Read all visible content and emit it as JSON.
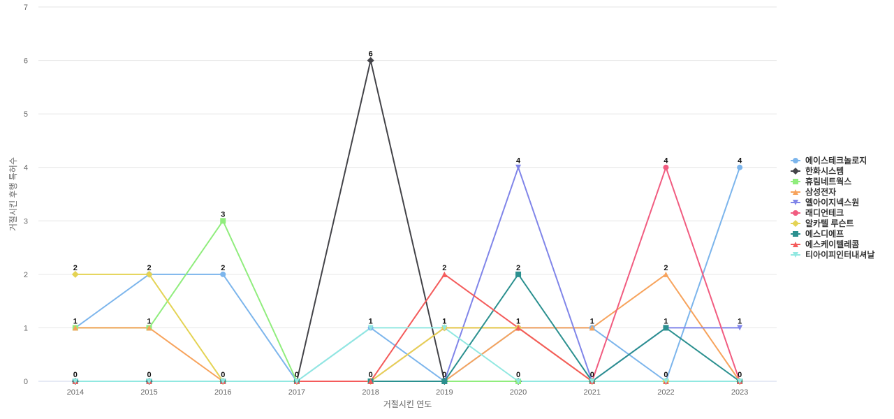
{
  "chart_data": {
    "type": "line",
    "xlabel": "거절시킨 연도",
    "ylabel": "거절시킨 후행 특허수",
    "x": [
      "2014",
      "2015",
      "2016",
      "2017",
      "2018",
      "2019",
      "2020",
      "2021",
      "2022",
      "2023"
    ],
    "ylim": [
      0,
      7
    ],
    "yticks": [
      0,
      1,
      2,
      3,
      4,
      5,
      6,
      7
    ],
    "grid": true,
    "legend_position": "right",
    "series": [
      {
        "name": "에이스테크놀로지",
        "color": "#7cb5ec",
        "marker": "circle",
        "values": [
          1,
          2,
          2,
          0,
          1,
          0,
          1,
          1,
          0,
          4
        ]
      },
      {
        "name": "한화시스템",
        "color": "#434348",
        "marker": "diamond",
        "values": [
          0,
          0,
          0,
          0,
          6,
          0,
          0,
          0,
          0,
          0
        ]
      },
      {
        "name": "휴림네트웍스",
        "color": "#90ed7d",
        "marker": "square",
        "values": [
          1,
          1,
          3,
          0,
          0,
          0,
          0,
          0,
          0,
          0
        ]
      },
      {
        "name": "삼성전자",
        "color": "#f7a35c",
        "marker": "triangle",
        "values": [
          1,
          1,
          0,
          0,
          0,
          0,
          1,
          1,
          2,
          0
        ]
      },
      {
        "name": "엘아이지넥스원",
        "color": "#8085e9",
        "marker": "triangle-down",
        "values": [
          0,
          0,
          0,
          0,
          0,
          0,
          4,
          0,
          1,
          1
        ]
      },
      {
        "name": "래디언테크",
        "color": "#f15c80",
        "marker": "circle",
        "values": [
          0,
          0,
          0,
          0,
          0,
          1,
          1,
          0,
          4,
          0
        ]
      },
      {
        "name": "알카텔 루슨트",
        "color": "#e4d354",
        "marker": "diamond",
        "values": [
          2,
          2,
          0,
          0,
          0,
          1,
          1,
          0,
          0,
          0
        ]
      },
      {
        "name": "에스디에프",
        "color": "#2b908f",
        "marker": "square",
        "values": [
          0,
          0,
          0,
          0,
          0,
          0,
          2,
          0,
          1,
          0
        ]
      },
      {
        "name": "에스케이텔레콤",
        "color": "#f45b5b",
        "marker": "triangle",
        "values": [
          0,
          0,
          0,
          0,
          0,
          2,
          1,
          0,
          0,
          0
        ]
      },
      {
        "name": "티아이피인터내셔날",
        "color": "#91e8e1",
        "marker": "triangle-down",
        "values": [
          0,
          0,
          0,
          0,
          1,
          1,
          0,
          0,
          0,
          0
        ]
      }
    ],
    "data_labels": [
      {
        "x": "2014",
        "value": 2
      },
      {
        "x": "2014",
        "value": 1
      },
      {
        "x": "2014",
        "value": 0
      },
      {
        "x": "2015",
        "value": 2
      },
      {
        "x": "2015",
        "value": 1
      },
      {
        "x": "2015",
        "value": 0
      },
      {
        "x": "2016",
        "value": 3
      },
      {
        "x": "2016",
        "value": 2
      },
      {
        "x": "2016",
        "value": 0
      },
      {
        "x": "2017",
        "value": 0
      },
      {
        "x": "2018",
        "value": 6
      },
      {
        "x": "2018",
        "value": 1
      },
      {
        "x": "2018",
        "value": 0
      },
      {
        "x": "2019",
        "value": 2
      },
      {
        "x": "2019",
        "value": 1
      },
      {
        "x": "2019",
        "value": 0
      },
      {
        "x": "2020",
        "value": 4
      },
      {
        "x": "2020",
        "value": 2
      },
      {
        "x": "2020",
        "value": 1
      },
      {
        "x": "2020",
        "value": 0
      },
      {
        "x": "2021",
        "value": 1
      },
      {
        "x": "2021",
        "value": 0
      },
      {
        "x": "2022",
        "value": 4
      },
      {
        "x": "2022",
        "value": 2
      },
      {
        "x": "2022",
        "value": 1
      },
      {
        "x": "2022",
        "value": 0
      },
      {
        "x": "2023",
        "value": 4
      },
      {
        "x": "2023",
        "value": 1
      },
      {
        "x": "2023",
        "value": 0
      }
    ]
  }
}
